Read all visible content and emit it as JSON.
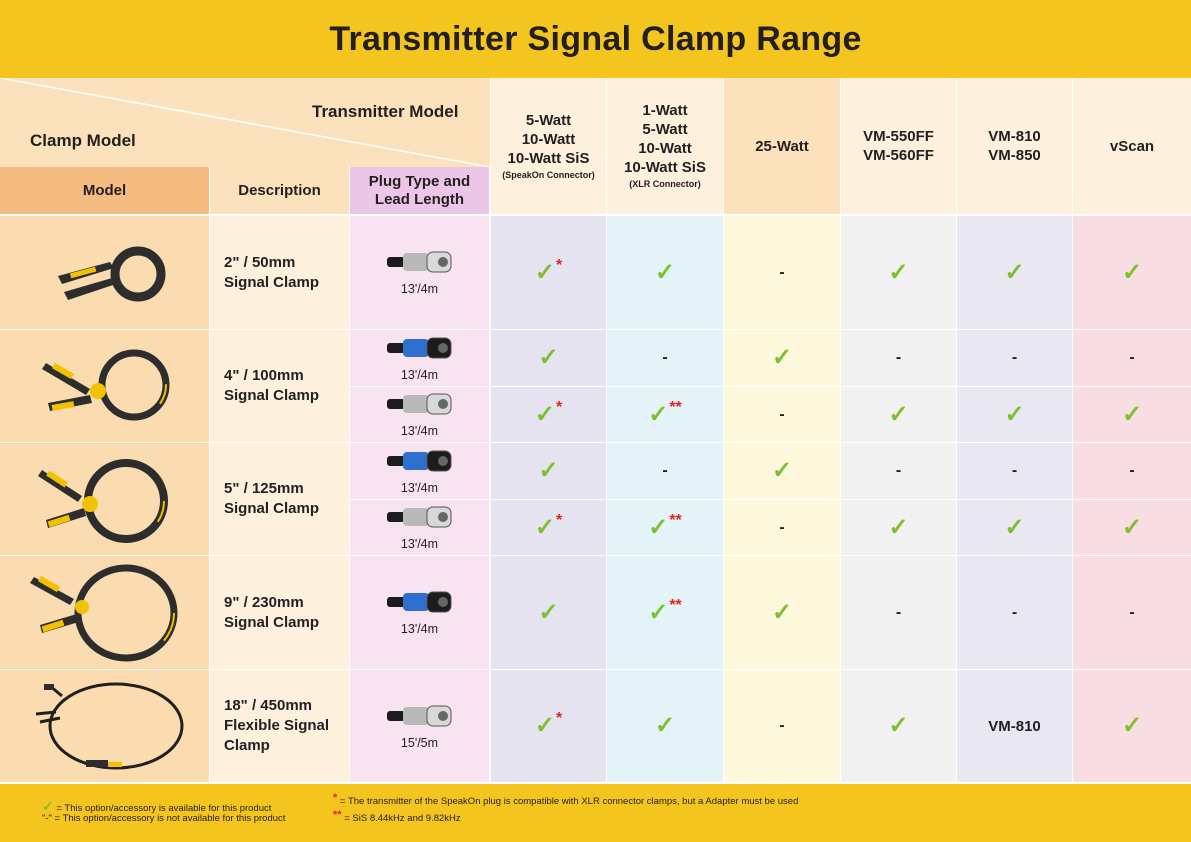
{
  "title": "Transmitter Signal Clamp Range",
  "header": {
    "transmitter_model": "Transmitter Model",
    "clamp_model": "Clamp Model",
    "model": "Model",
    "description": "Description",
    "plug_line1": "Plug Type and",
    "plug_line2": "Lead Length"
  },
  "columns": [
    {
      "l1": "5-Watt",
      "l2": "10-Watt",
      "l3": "10-Watt SiS",
      "l4": "",
      "note": "(SpeakOn Connector)"
    },
    {
      "l1": "1-Watt",
      "l2": "5-Watt",
      "l3": "10-Watt",
      "l4": "10-Watt SiS",
      "note": "(XLR Connector)"
    },
    {
      "l1": "25-Watt",
      "l2": "",
      "l3": "",
      "l4": "",
      "note": ""
    },
    {
      "l1": "VM-550FF",
      "l2": "VM-560FF",
      "l3": "",
      "l4": "",
      "note": ""
    },
    {
      "l1": "VM-810",
      "l2": "VM-850",
      "l3": "",
      "l4": "",
      "note": ""
    },
    {
      "l1": "vScan",
      "l2": "",
      "l3": "",
      "l4": "",
      "note": ""
    }
  ],
  "clamps": [
    {
      "d1": "2\" / 50mm",
      "d2": "Signal Clamp",
      "d3": ""
    },
    {
      "d1": "4\" / 100mm",
      "d2": "Signal Clamp",
      "d3": ""
    },
    {
      "d1": "5\" / 125mm",
      "d2": "Signal Clamp",
      "d3": ""
    },
    {
      "d1": "9\" / 230mm",
      "d2": "Signal Clamp",
      "d3": ""
    },
    {
      "d1": "18\" / 450mm",
      "d2": "Flexible Signal",
      "d3": "Clamp"
    }
  ],
  "rows": [
    {
      "plug": "xlr",
      "len": "13'/4m",
      "cells": [
        "ok*",
        "ok",
        "-",
        "ok",
        "ok",
        "ok"
      ]
    },
    {
      "plug": "speakon",
      "len": "13'/4m",
      "cells": [
        "ok",
        "-",
        "ok",
        "-",
        "-",
        "-"
      ]
    },
    {
      "plug": "xlr",
      "len": "13'/4m",
      "cells": [
        "ok*",
        "ok**",
        "-",
        "ok",
        "ok",
        "ok"
      ]
    },
    {
      "plug": "speakon",
      "len": "13'/4m",
      "cells": [
        "ok",
        "-",
        "ok",
        "-",
        "-",
        "-"
      ]
    },
    {
      "plug": "xlr",
      "len": "13'/4m",
      "cells": [
        "ok*",
        "ok**",
        "-",
        "ok",
        "ok",
        "ok"
      ]
    },
    {
      "plug": "speakon",
      "len": "13'/4m",
      "cells": [
        "ok",
        "ok**",
        "ok",
        "-",
        "-",
        "-"
      ]
    },
    {
      "plug": "xlr",
      "len": "15'/5m",
      "cells": [
        "ok*",
        "ok",
        "-",
        "ok",
        "VM-810",
        "ok"
      ]
    }
  ],
  "symbols": {
    "check": "✓",
    "star1": "*",
    "star2": "**",
    "dash": "-"
  },
  "legend": {
    "available": "= This option/accessory is available for this product",
    "not_available": "\"-\" = This option/accessory is not available for this product",
    "star1": "= The transmitter of the SpeakOn plug is compatible with XLR connector clamps, but a Adapter must be used",
    "star2": "= SiS 8.44kHz and 9.82kHz"
  },
  "colors": {
    "banner": "#f4c51f",
    "check": "#7cbf2f",
    "star": "#e52320",
    "col_tints": [
      "#e6e3f1",
      "#e4f3f8",
      "#fdf8dc",
      "#f1f1f1",
      "#e9e7f2",
      "#f8dde2"
    ]
  }
}
